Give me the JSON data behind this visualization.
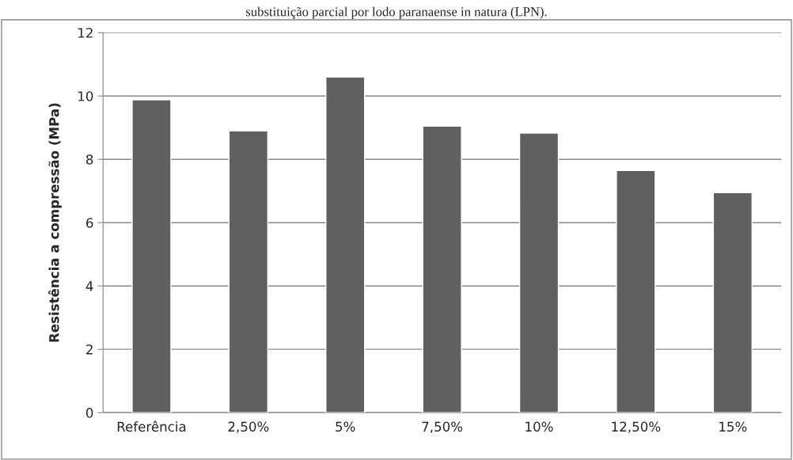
{
  "chart_data": {
    "type": "bar",
    "title": "substituição parcial por lodo paranaense in natura (LPN).",
    "ylabel": "Resistência a compressão (MPa)",
    "categories": [
      "Referência",
      "2,50%",
      "5%",
      "7,50%",
      "10%",
      "12,50%",
      "15%"
    ],
    "values": [
      9.88,
      8.9,
      10.6,
      9.05,
      8.83,
      7.65,
      6.95
    ],
    "color": "#606060",
    "ylim": [
      0,
      12
    ],
    "yticks": [
      0,
      2,
      4,
      6,
      8,
      10,
      12
    ],
    "grid": "y",
    "legend": false
  }
}
